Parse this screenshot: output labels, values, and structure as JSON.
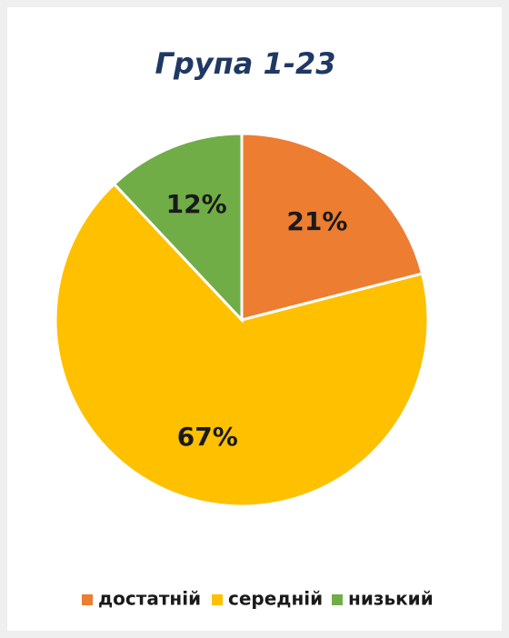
{
  "chart_data": {
    "type": "pie",
    "title": "Група 1-23",
    "categories": [
      "достатній",
      "середній",
      "низький"
    ],
    "values": [
      21,
      67,
      12
    ],
    "value_labels": [
      "21%",
      "67%",
      "12%"
    ],
    "colors": [
      "#ED7D31",
      "#FFC000",
      "#70AD47"
    ],
    "legend": "bottom"
  }
}
